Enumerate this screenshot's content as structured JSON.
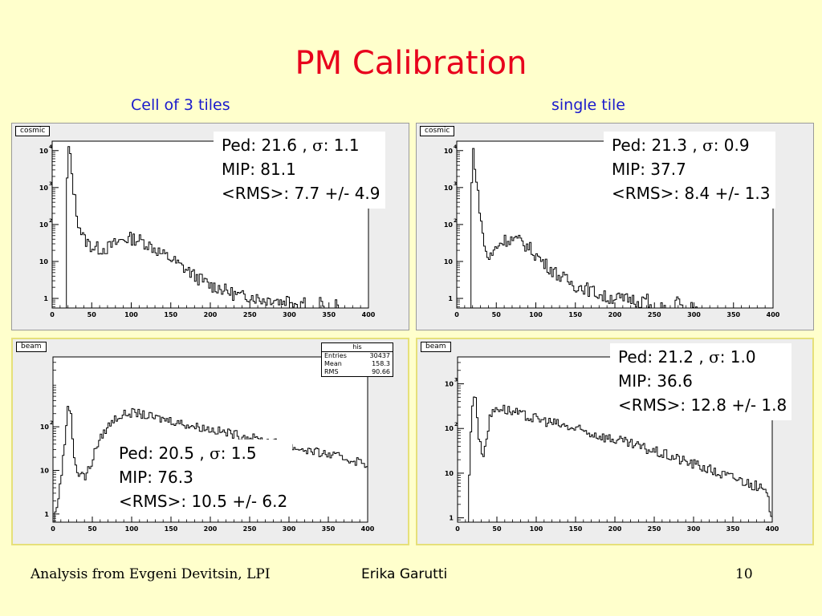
{
  "slide": {
    "title": "PM Calibration",
    "left_header": "Cell of 3 tiles",
    "right_header": "single tile",
    "footer_left": "Analysis from Evgeni Devitsin, LPI",
    "footer_center": "Erika Garutti",
    "footer_page": "10"
  },
  "colors": {
    "title": "#e8001c",
    "header": "#1a1acc",
    "background": "#ffffcc"
  },
  "chart_data": [
    {
      "type": "line",
      "id": "cosmic-3tiles",
      "tag": "cosmic",
      "y_scale": "log",
      "xlim": [
        0,
        400
      ],
      "ylim": [
        0.55,
        18000
      ],
      "x_ticks": [
        0,
        50,
        100,
        150,
        200,
        250,
        300,
        350,
        400
      ],
      "y_ticks": [
        {
          "value": 1,
          "label": "1"
        },
        {
          "value": 10,
          "label": "10"
        },
        {
          "value": 100,
          "label": "10",
          "exp": "2"
        },
        {
          "value": 1000,
          "label": "10",
          "exp": "3"
        },
        {
          "value": 10000,
          "label": "10",
          "exp": "4"
        }
      ],
      "x": [
        0,
        18,
        20,
        21,
        22,
        24,
        27,
        30,
        33,
        36,
        40,
        50,
        60,
        70,
        80,
        90,
        100,
        110,
        120,
        130,
        140,
        150,
        160,
        170,
        180,
        190,
        200,
        210,
        220,
        230,
        240,
        250,
        260,
        270,
        280,
        290,
        300,
        310,
        320,
        330,
        340,
        350,
        360,
        370,
        380,
        390,
        400
      ],
      "y": [
        0,
        0,
        3000,
        12000,
        9000,
        3000,
        900,
        250,
        120,
        70,
        40,
        25,
        22,
        23,
        30,
        40,
        42,
        38,
        30,
        22,
        15,
        12,
        8,
        6,
        4,
        3,
        2.2,
        2,
        1.6,
        1.3,
        1.1,
        1.2,
        1,
        0.9,
        1,
        0.8,
        1,
        0.7,
        0.9,
        0,
        0.8,
        0,
        0.7,
        0,
        0,
        0,
        0
      ],
      "noise": 0.18,
      "annotation": {
        "ped": "Ped:   21.6 ,  ",
        "sigma": "σ",
        "ped_sigma": ": 1.1",
        "mip": "MIP:  81.1",
        "rms": "<RMS>: 7.7 +/- 4.9"
      }
    },
    {
      "type": "line",
      "id": "cosmic-single",
      "tag": "cosmic",
      "y_scale": "log",
      "xlim": [
        0,
        400
      ],
      "ylim": [
        0.55,
        18000
      ],
      "x_ticks": [
        0,
        50,
        100,
        150,
        200,
        250,
        300,
        350,
        400
      ],
      "y_ticks": [
        {
          "value": 1,
          "label": "1"
        },
        {
          "value": 10,
          "label": "10"
        },
        {
          "value": 100,
          "label": "10",
          "exp": "2"
        },
        {
          "value": 1000,
          "label": "10",
          "exp": "3"
        },
        {
          "value": 10000,
          "label": "10",
          "exp": "4"
        }
      ],
      "x": [
        0,
        18,
        20,
        21,
        22,
        24,
        27,
        30,
        33,
        36,
        40,
        45,
        50,
        60,
        70,
        80,
        90,
        100,
        110,
        120,
        130,
        140,
        150,
        160,
        170,
        180,
        190,
        200,
        210,
        220,
        230,
        240,
        250,
        260,
        270,
        280,
        290,
        300,
        310,
        320,
        330,
        340,
        350,
        360,
        370,
        380,
        390,
        400
      ],
      "y": [
        0,
        0,
        2500,
        10000,
        7000,
        2000,
        600,
        150,
        50,
        20,
        12,
        15,
        25,
        38,
        40,
        35,
        25,
        15,
        9,
        6,
        4,
        3,
        2.2,
        2,
        1.6,
        1.3,
        1,
        1.1,
        0.9,
        1,
        0.8,
        1,
        0,
        0.8,
        0,
        0.9,
        0,
        0.8,
        0,
        0,
        0,
        0,
        0,
        0,
        0,
        0,
        0,
        0
      ],
      "noise": 0.18,
      "annotation": {
        "ped": "Ped:   21.3  ,  ",
        "sigma": "σ",
        "ped_sigma": ": 0.9",
        "mip": "MIP:  37.7",
        "rms": "<RMS>: 8.4 +/- 1.3"
      }
    },
    {
      "type": "line",
      "id": "beam-3tiles",
      "tag": "beam",
      "y_scale": "log",
      "xlim": [
        0,
        400
      ],
      "ylim": [
        0.65,
        4000
      ],
      "x_ticks": [
        0,
        50,
        100,
        150,
        200,
        250,
        300,
        350,
        400
      ],
      "y_ticks": [
        {
          "value": 1,
          "label": "1"
        },
        {
          "value": 10,
          "label": "10"
        },
        {
          "value": 100,
          "label": "10",
          "exp": "2"
        }
      ],
      "x": [
        0,
        2,
        4,
        6,
        8,
        10,
        12,
        14,
        16,
        18,
        20,
        22,
        24,
        26,
        28,
        30,
        32,
        34,
        36,
        38,
        40,
        45,
        50,
        60,
        70,
        80,
        90,
        100,
        110,
        120,
        130,
        140,
        150,
        160,
        170,
        180,
        190,
        200,
        210,
        220,
        230,
        240,
        250,
        260,
        270,
        280,
        290,
        300,
        310,
        320,
        330,
        340,
        350,
        360,
        370,
        380,
        390,
        400
      ],
      "y": [
        0,
        0.8,
        1.2,
        2,
        3,
        6,
        12,
        25,
        60,
        180,
        330,
        260,
        80,
        30,
        15,
        12,
        9,
        7,
        10,
        9,
        6,
        10,
        16,
        50,
        100,
        160,
        190,
        210,
        200,
        175,
        160,
        150,
        140,
        125,
        112,
        102,
        96,
        88,
        80,
        74,
        68,
        62,
        57,
        52,
        48,
        44,
        40,
        36,
        32,
        30,
        27,
        25,
        23,
        21,
        19,
        17,
        16,
        14
      ],
      "noise": 0.1,
      "stats": {
        "name": "his",
        "rows": [
          [
            "Entries",
            "30437"
          ],
          [
            "Mean",
            "158.3"
          ],
          [
            "RMS",
            "90.66"
          ]
        ]
      },
      "annotation": {
        "ped": "Ped:   20.5  ,  ",
        "sigma": "σ",
        "ped_sigma": ": 1.5",
        "mip": "MIP:  76.3",
        "rms": "<RMS>: 10.5 +/- 6.2"
      }
    },
    {
      "type": "line",
      "id": "beam-single",
      "tag": "beam",
      "y_scale": "log",
      "xlim": [
        0,
        400
      ],
      "ylim": [
        0.8,
        4000
      ],
      "x_ticks": [
        0,
        50,
        100,
        150,
        200,
        250,
        300,
        350,
        400
      ],
      "y_ticks": [
        {
          "value": 1,
          "label": "1"
        },
        {
          "value": 10,
          "label": "10"
        },
        {
          "value": 100,
          "label": "10",
          "exp": "2"
        },
        {
          "value": 1000,
          "label": "10",
          "exp": "3"
        }
      ],
      "x": [
        0,
        14,
        16,
        18,
        20,
        22,
        24,
        26,
        28,
        30,
        32,
        34,
        36,
        38,
        40,
        45,
        50,
        55,
        60,
        70,
        80,
        90,
        100,
        110,
        120,
        130,
        140,
        150,
        160,
        170,
        180,
        190,
        200,
        210,
        220,
        230,
        240,
        250,
        260,
        270,
        280,
        290,
        300,
        310,
        320,
        330,
        340,
        350,
        360,
        370,
        380,
        390,
        396,
        400
      ],
      "y": [
        0,
        0,
        20,
        120,
        560,
        700,
        300,
        90,
        45,
        35,
        30,
        30,
        45,
        80,
        140,
        240,
        300,
        290,
        270,
        235,
        200,
        180,
        165,
        150,
        135,
        120,
        108,
        95,
        86,
        78,
        70,
        62,
        56,
        50,
        44,
        39,
        35,
        31,
        27,
        24,
        21,
        18,
        16,
        14,
        12,
        10,
        9,
        8,
        7,
        6,
        5,
        4,
        2,
        1
      ],
      "noise": 0.12,
      "annotation": {
        "ped": "Ped:   21.2  ,  ",
        "sigma": "σ",
        "ped_sigma": ": 1.0",
        "mip": "MIP:  36.6",
        "rms": "<RMS>: 12.8 +/- 1.8"
      }
    }
  ]
}
